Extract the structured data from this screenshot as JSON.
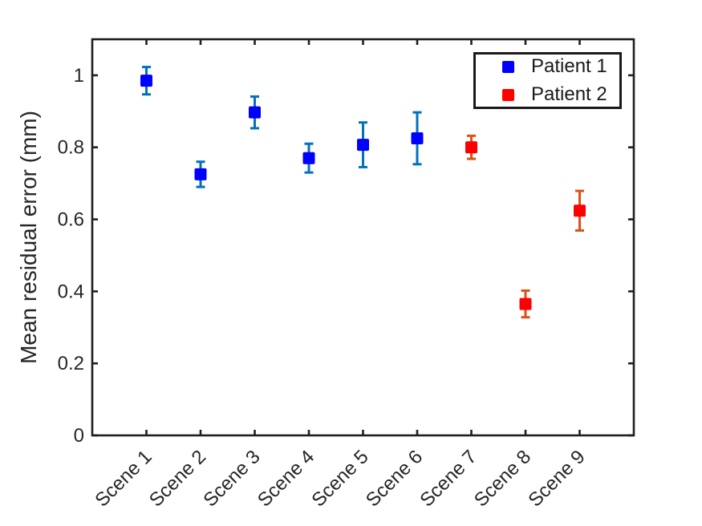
{
  "figure": {
    "background": "#ffffff",
    "frame_color": "#1f1f1f",
    "text_color": "#262626"
  },
  "chart_data": {
    "type": "scatter",
    "subtype": "errorbar",
    "title": "",
    "xlabel": "",
    "ylabel": "Mean residual error (mm)",
    "categories": [
      "Scene 1",
      "Scene 2",
      "Scene 3",
      "Scene 4",
      "Scene 5",
      "Scene 6",
      "Scene 7",
      "Scene 8",
      "Scene 9"
    ],
    "ylim": [
      0,
      1.1
    ],
    "yticks": [
      {
        "value": 0,
        "label": "0"
      },
      {
        "value": 0.2,
        "label": "0.2"
      },
      {
        "value": 0.4,
        "label": "0.4"
      },
      {
        "value": 0.6,
        "label": "0.6"
      },
      {
        "value": 0.8,
        "label": "0.8"
      },
      {
        "value": 1,
        "label": "1"
      }
    ],
    "grid": false,
    "legend_position": "top-right",
    "marker": "square",
    "series": [
      {
        "name": "Patient 1",
        "marker_color": "#0000ff",
        "errorbar_color": "#0072bd",
        "points": [
          {
            "category": "Scene 1",
            "value": 0.985,
            "error": 0.038
          },
          {
            "category": "Scene 2",
            "value": 0.725,
            "error": 0.035
          },
          {
            "category": "Scene 3",
            "value": 0.897,
            "error": 0.044
          },
          {
            "category": "Scene 4",
            "value": 0.77,
            "error": 0.04
          },
          {
            "category": "Scene 5",
            "value": 0.807,
            "error": 0.062
          },
          {
            "category": "Scene 6",
            "value": 0.825,
            "error": 0.072
          }
        ]
      },
      {
        "name": "Patient 2",
        "marker_color": "#ff0000",
        "errorbar_color": "#d95319",
        "points": [
          {
            "category": "Scene 7",
            "value": 0.8,
            "error": 0.032
          },
          {
            "category": "Scene 8",
            "value": 0.365,
            "error": 0.037
          },
          {
            "category": "Scene 9",
            "value": 0.624,
            "error": 0.055
          }
        ]
      }
    ]
  }
}
